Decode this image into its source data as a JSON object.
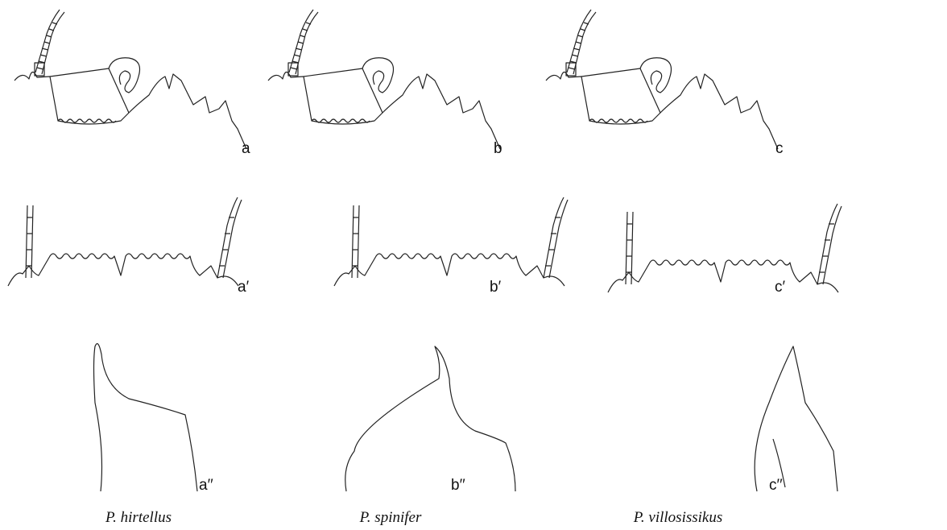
{
  "rows": [
    [
      "a",
      "b",
      "c"
    ],
    [
      "a′",
      "b′",
      "c′"
    ],
    [
      "a′′",
      "b′′",
      "c′′"
    ]
  ],
  "captions": [
    "P. hirtellus",
    "P. spinifer",
    "P. villosissikus"
  ]
}
